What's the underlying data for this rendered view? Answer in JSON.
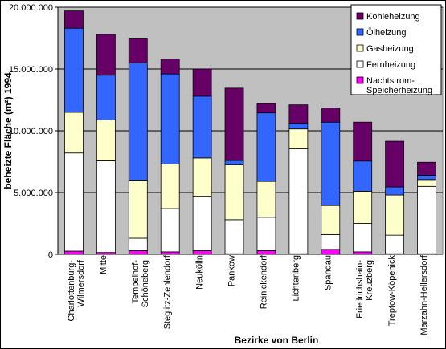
{
  "chart_data": {
    "type": "stacked_bar",
    "xlabel": "Bezirke von Berlin",
    "ylabel": "beheizte Fläche (m²) 1994",
    "categories": [
      "Charlottenburg-\nWilmersdorf",
      "Mitte",
      "Tempelhof-\nSchöneberg",
      "Steglitz-Zehlendorf",
      "Neukölln",
      "Pankow",
      "Reinickendorf",
      "Lichtenberg",
      "Spandau",
      "Friedrichshain-\nKreuzberg",
      "Treptow-Köpenick",
      "Marzahn-Hellersdorf"
    ],
    "series": [
      {
        "name": "Nachtstrom-\nSpeicherheizung",
        "color": "#ff00ff",
        "values": [
          260000,
          150000,
          300000,
          200000,
          300000,
          50000,
          300000,
          50000,
          400000,
          200000,
          50000,
          50000
        ]
      },
      {
        "name": "Fernheizung",
        "color": "#ffffff",
        "values": [
          7940000,
          7420000,
          1000000,
          3500000,
          4400000,
          2750000,
          2700000,
          8500000,
          1200000,
          2300000,
          1500000,
          5450000
        ]
      },
      {
        "name": "Gasheizung",
        "color": "#ffffcc",
        "values": [
          3300000,
          3300000,
          4700000,
          3600000,
          3100000,
          4450000,
          2900000,
          1600000,
          2350000,
          2600000,
          3250000,
          550000
        ]
      },
      {
        "name": "Ölheizung",
        "color": "#3366ff",
        "values": [
          6800000,
          3630000,
          9500000,
          7300000,
          5000000,
          350000,
          5550000,
          450000,
          6750000,
          2450000,
          650000,
          350000
        ]
      },
      {
        "name": "Kohleheizung",
        "color": "#660066",
        "values": [
          1400000,
          3300000,
          2000000,
          1200000,
          2200000,
          5850000,
          750000,
          1500000,
          1150000,
          3150000,
          3700000,
          1050000
        ]
      }
    ],
    "ylim": [
      0,
      20000000
    ],
    "yticks": [
      0,
      {
        "value": 5000000,
        "label": "5.000.000"
      },
      {
        "value": 10000000,
        "label": "10.000.000"
      },
      {
        "value": 15000000,
        "label": "15.000.000"
      },
      {
        "value": 20000000,
        "label": "20.000.000"
      }
    ],
    "grid": true,
    "legend": "top-right",
    "plot_background": "#c0c0c0"
  }
}
